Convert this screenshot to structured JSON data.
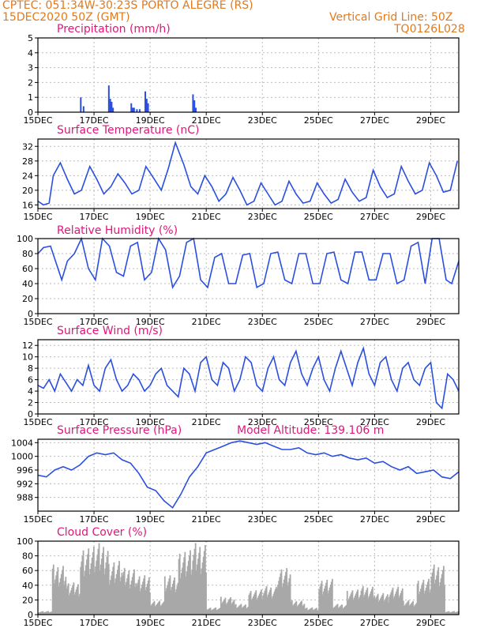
{
  "header": {
    "line1": "CPTEC:   051:34W-30:23S   PORTO ALEGRE (RS)",
    "line2": "15DEC2020 50Z (GMT)",
    "grid_note": "Vertical Grid Line: 50Z",
    "code": "TQ0126L028"
  },
  "colors": {
    "header": "#e07a1f",
    "title": "#e0167a",
    "line": "#2a4fe0",
    "cloud": "#a8a8a8",
    "grid": "#bbbbbb"
  },
  "x_axis": {
    "days": 15,
    "tick_labels": [
      "15DEC",
      "17DEC",
      "19DEC",
      "21DEC",
      "23DEC",
      "25DEC",
      "27DEC",
      "29DEC"
    ],
    "tick_positions_days": [
      0,
      2,
      4,
      6,
      8,
      10,
      12,
      14
    ]
  },
  "model_altitude": "Model Altitude: 139.106  m",
  "chart_data": [
    {
      "type": "bar",
      "title": "Precipitation  (mm/h)",
      "ylim": [
        0,
        5
      ],
      "yticks": [
        0,
        1,
        2,
        3,
        4,
        5
      ],
      "series": [
        {
          "x": [
            1.5,
            1.6,
            2.5,
            2.55,
            2.6,
            2.65,
            3.3,
            3.35,
            3.4,
            3.5,
            3.6,
            3.8,
            3.85,
            3.9,
            5.5,
            5.55,
            5.6
          ],
          "values": [
            1.0,
            0.4,
            1.8,
            0.9,
            0.7,
            0.3,
            0.6,
            0.3,
            0.3,
            0.2,
            0.2,
            1.4,
            0.9,
            0.6,
            1.2,
            0.8,
            0.3
          ]
        }
      ]
    },
    {
      "type": "line",
      "title": "Surface Temperature  (nC)",
      "ylim": [
        15,
        34
      ],
      "yticks": [
        16,
        20,
        24,
        28,
        32
      ],
      "series": [
        {
          "x": [
            0,
            0.2,
            0.4,
            0.55,
            0.8,
            1.05,
            1.3,
            1.55,
            1.85,
            2.1,
            2.35,
            2.6,
            2.85,
            3.1,
            3.35,
            3.6,
            3.85,
            4.15,
            4.4,
            4.65,
            4.9,
            5.2,
            5.45,
            5.7,
            5.95,
            6.2,
            6.45,
            6.7,
            6.95,
            7.2,
            7.45,
            7.7,
            7.95,
            8.2,
            8.45,
            8.7,
            8.95,
            9.2,
            9.45,
            9.7,
            9.95,
            10.2,
            10.45,
            10.7,
            10.95,
            11.2,
            11.45,
            11.7,
            11.95,
            12.2,
            12.45,
            12.7,
            12.95,
            13.2,
            13.45,
            13.7,
            13.95,
            14.2,
            14.45,
            14.7,
            14.95
          ],
          "values": [
            17,
            16,
            16.5,
            24,
            27.5,
            23,
            19,
            20,
            26.5,
            23,
            19,
            21,
            24.5,
            22,
            19,
            20,
            26.5,
            23,
            20,
            26,
            33,
            27,
            21,
            19,
            24,
            21,
            17,
            19,
            23.5,
            20,
            16,
            17,
            22,
            19,
            16,
            17,
            22.5,
            19,
            16.5,
            17,
            22,
            19,
            16.5,
            17.5,
            23,
            19.5,
            17,
            18,
            25.5,
            21,
            18,
            19,
            26.5,
            22.5,
            19,
            20,
            27.5,
            24,
            19.5,
            20,
            28
          ]
        }
      ]
    },
    {
      "type": "line",
      "title": "Relative Humidity  (%)",
      "ylim": [
        0,
        100
      ],
      "yticks": [
        0,
        20,
        40,
        60,
        80,
        100
      ],
      "series": [
        {
          "x": [
            0,
            0.2,
            0.45,
            0.85,
            1.05,
            1.3,
            1.55,
            1.8,
            2.05,
            2.3,
            2.55,
            2.8,
            3.05,
            3.3,
            3.55,
            3.8,
            4.05,
            4.3,
            4.55,
            4.8,
            5.05,
            5.3,
            5.55,
            5.8,
            6.05,
            6.3,
            6.55,
            6.8,
            7.05,
            7.3,
            7.55,
            7.8,
            8.05,
            8.3,
            8.55,
            8.8,
            9.05,
            9.3,
            9.55,
            9.8,
            10.05,
            10.3,
            10.55,
            10.8,
            11.05,
            11.3,
            11.55,
            11.8,
            12.05,
            12.3,
            12.55,
            12.8,
            13.05,
            13.3,
            13.55,
            13.8,
            14.05,
            14.3,
            14.55,
            14.75,
            15
          ],
          "values": [
            80,
            88,
            90,
            45,
            70,
            80,
            100,
            60,
            45,
            100,
            90,
            55,
            50,
            90,
            95,
            45,
            55,
            100,
            85,
            35,
            50,
            95,
            100,
            45,
            35,
            75,
            80,
            40,
            40,
            78,
            80,
            35,
            40,
            80,
            82,
            45,
            40,
            80,
            80,
            40,
            40,
            80,
            82,
            45,
            40,
            82,
            82,
            45,
            45,
            80,
            80,
            40,
            45,
            90,
            95,
            40,
            100,
            100,
            45,
            40,
            70
          ]
        }
      ]
    },
    {
      "type": "line",
      "title": "Surface Wind  (m/s)",
      "ylim": [
        0,
        13
      ],
      "yticks": [
        0,
        2,
        4,
        6,
        8,
        10,
        12
      ],
      "series": [
        {
          "x": [
            0,
            0.2,
            0.4,
            0.6,
            0.8,
            1.0,
            1.2,
            1.4,
            1.6,
            1.8,
            2.0,
            2.2,
            2.4,
            2.6,
            2.8,
            3.0,
            3.2,
            3.4,
            3.6,
            3.8,
            4.0,
            4.2,
            4.4,
            4.6,
            4.8,
            5.0,
            5.2,
            5.4,
            5.6,
            5.8,
            6.0,
            6.2,
            6.4,
            6.6,
            6.8,
            7.0,
            7.2,
            7.4,
            7.6,
            7.8,
            8.0,
            8.2,
            8.4,
            8.6,
            8.8,
            9.0,
            9.2,
            9.4,
            9.6,
            9.8,
            10.0,
            10.2,
            10.4,
            10.6,
            10.8,
            11.0,
            11.2,
            11.4,
            11.6,
            11.8,
            12.0,
            12.2,
            12.4,
            12.6,
            12.8,
            13.0,
            13.2,
            13.4,
            13.6,
            13.8,
            14.0,
            14.2,
            14.4,
            14.6,
            14.8,
            15.0
          ],
          "values": [
            5,
            4.5,
            6,
            4,
            7,
            5.5,
            4,
            6,
            5,
            8.5,
            5,
            4,
            8,
            9.5,
            6,
            4,
            5,
            7,
            6,
            4,
            5,
            7,
            8,
            5,
            4,
            3,
            8,
            7,
            4,
            9,
            10,
            6,
            5,
            9,
            8,
            4,
            6,
            10,
            9,
            5,
            4,
            8,
            10,
            6,
            5,
            9,
            11,
            7,
            5,
            8,
            10,
            6,
            4,
            8,
            11,
            8,
            5,
            9,
            11.5,
            7,
            5,
            9,
            10,
            6,
            4,
            8,
            9,
            6,
            5,
            8,
            9,
            2,
            1,
            7,
            6,
            4
          ]
        }
      ]
    },
    {
      "type": "line",
      "title": "Surface Pressure  (hPa)",
      "ylim": [
        984,
        1005
      ],
      "yticks": [
        988,
        992,
        996,
        1000,
        1004
      ],
      "series": [
        {
          "x": [
            0,
            0.3,
            0.6,
            0.9,
            1.2,
            1.5,
            1.8,
            2.1,
            2.4,
            2.7,
            3.0,
            3.3,
            3.6,
            3.9,
            4.2,
            4.5,
            4.8,
            5.1,
            5.4,
            5.7,
            6.0,
            6.3,
            6.6,
            6.9,
            7.2,
            7.5,
            7.8,
            8.1,
            8.4,
            8.7,
            9.0,
            9.3,
            9.6,
            9.9,
            10.2,
            10.5,
            10.8,
            11.1,
            11.4,
            11.7,
            12.0,
            12.3,
            12.6,
            12.9,
            13.2,
            13.5,
            13.8,
            14.1,
            14.4,
            14.7,
            15.0
          ],
          "values": [
            994.5,
            994,
            996,
            997,
            996,
            997.5,
            1000,
            1001,
            1000.5,
            1001,
            999,
            998,
            995,
            991,
            990,
            987,
            985,
            989,
            994,
            997,
            1001,
            1002,
            1003,
            1004,
            1004.5,
            1004,
            1003.5,
            1004,
            1003,
            1002,
            1002,
            1002.5,
            1001,
            1000.5,
            1001,
            1000,
            1000.5,
            999.5,
            999,
            999.5,
            998,
            998.5,
            997,
            996,
            997,
            995,
            995.5,
            996,
            994,
            993.5,
            995.5
          ]
        }
      ]
    },
    {
      "type": "bar",
      "title": "Cloud Cover  (%)",
      "ylim": [
        0,
        100
      ],
      "yticks": [
        0,
        20,
        40,
        60,
        80,
        100
      ],
      "series": [
        {
          "x": [
            0,
            0.5,
            1,
            1.5,
            2,
            2.5,
            3,
            3.5,
            4,
            4.5,
            5,
            5.5,
            6,
            6.5,
            7,
            7.5,
            8,
            8.5,
            9,
            9.5,
            10,
            10.5,
            11,
            11.5,
            12,
            12.5,
            13,
            13.5,
            14,
            14.5
          ],
          "values": [
            5,
            70,
            45,
            95,
            100,
            75,
            65,
            55,
            20,
            55,
            90,
            100,
            10,
            25,
            15,
            35,
            40,
            65,
            20,
            10,
            50,
            15,
            35,
            40,
            30,
            40,
            20,
            50,
            70,
            5
          ]
        }
      ]
    }
  ]
}
